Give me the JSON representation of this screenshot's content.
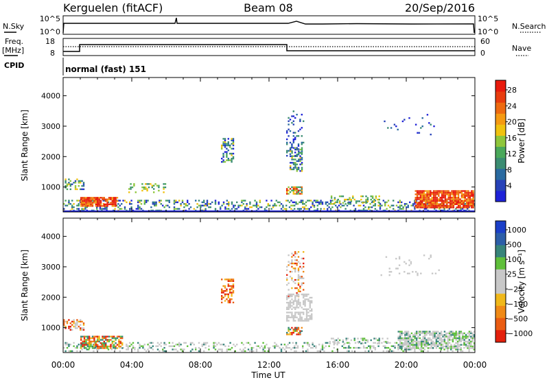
{
  "header": {
    "title_left": "Kerguelen (fitACF)",
    "title_center": "Beam 08",
    "title_right": "20/Sep/2016"
  },
  "top_panels": {
    "nsky_label": "N.Sky",
    "nsky_ticks": [
      "10^5",
      "10^0"
    ],
    "nsearch_label": "N.Search",
    "nsearch_ticks": [
      "10^5",
      "10^0"
    ],
    "freq_label_1": "Freq.",
    "freq_label_2": "[MHz]",
    "freq_ticks": [
      "18",
      "8"
    ],
    "nave_label": "Nave",
    "nave_ticks": [
      "60",
      "0"
    ],
    "cpid_label": "CPID",
    "cpid_text": "normal (fast) 151"
  },
  "chart_data": [
    {
      "type": "heatmap",
      "name": "power",
      "ylabel": "Slant Range [km]",
      "yticks": [
        "1000",
        "2000",
        "3000",
        "4000"
      ],
      "ylim": [
        180,
        4600
      ],
      "xlim": [
        0,
        24
      ],
      "colorbar": {
        "label": "Power [dB]",
        "ticks": [
          "4",
          "8",
          "12",
          "16",
          "20",
          "24",
          "28"
        ],
        "colors": [
          "#1e22d8",
          "#2742b8",
          "#2a6aa0",
          "#3b8c72",
          "#4aa85a",
          "#8fc63b",
          "#f0c20f",
          "#f59a12",
          "#ee6a10",
          "#e83c0e",
          "#e81a0c"
        ]
      }
    },
    {
      "type": "heatmap",
      "name": "velocity",
      "ylabel": "Slant Range [km]",
      "yticks": [
        "1000",
        "2000",
        "3000",
        "4000"
      ],
      "ylim": [
        180,
        4600
      ],
      "xlim": [
        0,
        24
      ],
      "xlabel": "Time UT",
      "xticks": [
        "00:00",
        "04:00",
        "08:00",
        "12:00",
        "16:00",
        "20:00",
        "00:00"
      ],
      "colorbar": {
        "label": "Velocity [m s⁻¹]",
        "ticks": [
          "1000",
          "500",
          "100",
          "25",
          "−25",
          "−100",
          "−500",
          "−1000"
        ],
        "colors": [
          "#1b3fc8",
          "#2c5ea8",
          "#37847a",
          "#5fbf3a",
          "#c8c8c8",
          "#c8c8c8",
          "#f0b81a",
          "#f08a16",
          "#ea5c12",
          "#e4200c"
        ]
      }
    }
  ]
}
